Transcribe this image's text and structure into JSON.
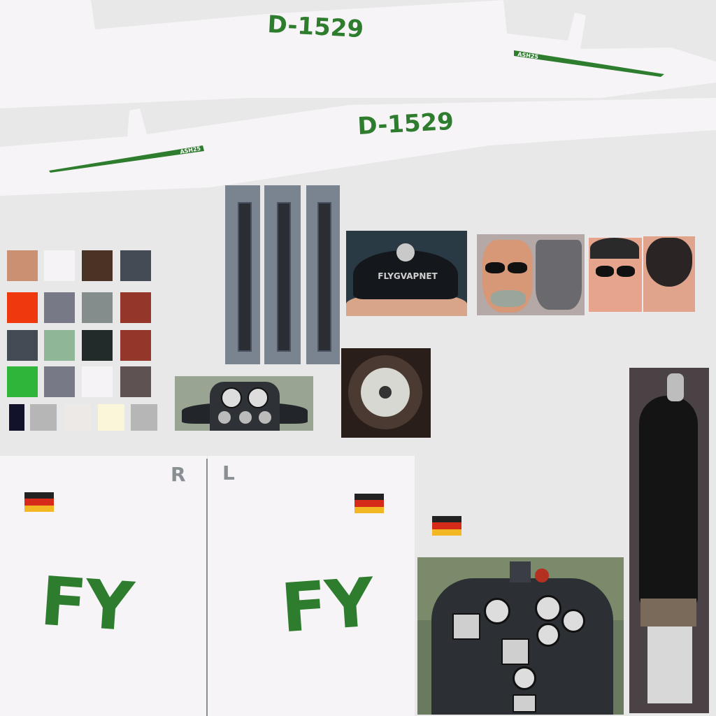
{
  "texture": {
    "registration_top": "D-1529",
    "registration_bottom": "D-1529",
    "type_mark_top": "ASH25",
    "type_mark_bottom": "ASH25",
    "side_right_label": "R",
    "side_left_label": "L",
    "code_right": "FY",
    "code_left": "FY",
    "cap_text": "FLYGVAPNET"
  },
  "colors": {
    "accent_green": "#2e7d2e",
    "fuselage_white": "#f6f4f6",
    "flag_black": "#222222",
    "flag_red": "#d62a1a",
    "flag_gold": "#f2b722"
  },
  "swatches": [
    [
      "#c99072",
      "#f5f3f5",
      "#4a3324",
      "#454b55"
    ],
    [
      "#f0380e",
      "#777a86",
      "#848c8c",
      "#94362a"
    ],
    [
      "#454b55",
      "#8fb696",
      "#232a2a",
      "#94362a"
    ],
    [
      "#2fb53a",
      "#777a86",
      "#f5f3f5",
      "#5e5352"
    ],
    [
      "#12122a",
      "#b6b6b6",
      "#ece9e6",
      "#f9f6da",
      "#b6b6b6"
    ]
  ]
}
